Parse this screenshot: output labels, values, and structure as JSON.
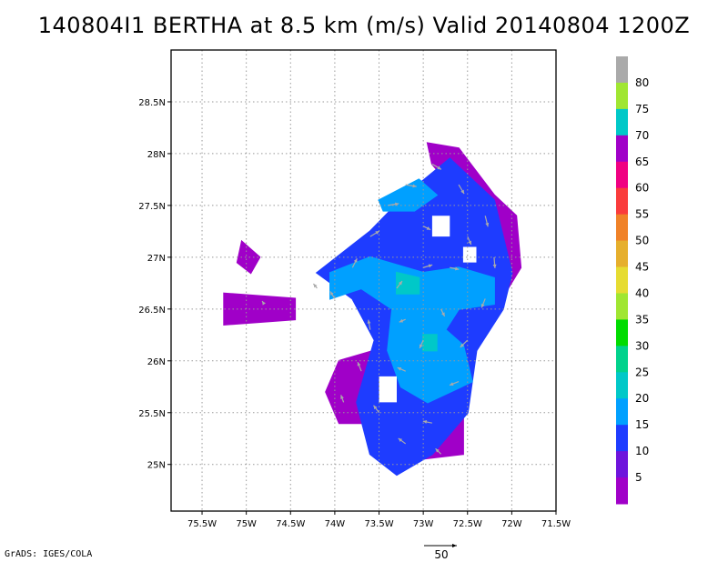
{
  "title": "140804I1 BERTHA at 8.5 km (m/s) Valid 20140804 1200Z",
  "credit": "GrADS: IGES/COLA",
  "chart_data": {
    "type": "heatmap",
    "title": "140804I1 BERTHA at 8.5 km (m/s) Valid 20140804 1200Z",
    "xlabel": "",
    "ylabel": "",
    "xlim": [
      -75.85,
      -71.5
    ],
    "ylim": [
      24.55,
      29.0
    ],
    "x_ticks": [
      {
        "value": -75.5,
        "label": "75.5W"
      },
      {
        "value": -75.0,
        "label": "75W"
      },
      {
        "value": -74.5,
        "label": "74.5W"
      },
      {
        "value": -74.0,
        "label": "74W"
      },
      {
        "value": -73.5,
        "label": "73.5W"
      },
      {
        "value": -73.0,
        "label": "73W"
      },
      {
        "value": -72.5,
        "label": "72.5W"
      },
      {
        "value": -72.0,
        "label": "72W"
      },
      {
        "value": -71.5,
        "label": "71.5W"
      }
    ],
    "y_ticks": [
      {
        "value": 25.0,
        "label": "25N"
      },
      {
        "value": 25.5,
        "label": "25.5N"
      },
      {
        "value": 26.0,
        "label": "26N"
      },
      {
        "value": 26.5,
        "label": "26.5N"
      },
      {
        "value": 27.0,
        "label": "27N"
      },
      {
        "value": 27.5,
        "label": "27.5N"
      },
      {
        "value": 28.0,
        "label": "28N"
      },
      {
        "value": 28.5,
        "label": "28.5N"
      }
    ],
    "grid": true,
    "colorbar": {
      "placement": "right",
      "levels": [
        {
          "label": "",
          "color": "#a000c8"
        },
        {
          "label": "5",
          "color": "#6e14dc"
        },
        {
          "label": "10",
          "color": "#1e3cff"
        },
        {
          "label": "15",
          "color": "#00a0ff"
        },
        {
          "label": "20",
          "color": "#00c8c8"
        },
        {
          "label": "25",
          "color": "#00d28c"
        },
        {
          "label": "30",
          "color": "#00dc00"
        },
        {
          "label": "35",
          "color": "#a0e632"
        },
        {
          "label": "40",
          "color": "#e6dc32"
        },
        {
          "label": "45",
          "color": "#e6af2d"
        },
        {
          "label": "50",
          "color": "#f08228"
        },
        {
          "label": "55",
          "color": "#fa3c3c"
        },
        {
          "label": "60",
          "color": "#f00082"
        },
        {
          "label": "65",
          "color": "#a000c8"
        },
        {
          "label": "70",
          "color": "#00c8c8"
        },
        {
          "label": "75",
          "color": "#a0e632"
        },
        {
          "label": "80",
          "color": "#aaaaaa"
        }
      ]
    },
    "wind_speed_regions": [
      {
        "name": "purple",
        "color": "#a000c8",
        "points": [
          [
            -75.05,
            27.15
          ],
          [
            -74.85,
            27.0
          ],
          [
            -74.95,
            26.85
          ],
          [
            -75.1,
            26.95
          ]
        ]
      },
      {
        "name": "purple",
        "color": "#a000c8",
        "points": [
          [
            -75.25,
            26.65
          ],
          [
            -74.45,
            26.6
          ],
          [
            -74.45,
            26.4
          ],
          [
            -75.25,
            26.35
          ]
        ]
      },
      {
        "name": "purple",
        "color": "#a000c8",
        "points": [
          [
            -72.95,
            28.1
          ],
          [
            -72.6,
            28.05
          ],
          [
            -72.2,
            27.6
          ],
          [
            -71.95,
            27.4
          ],
          [
            -71.9,
            26.9
          ],
          [
            -72.15,
            26.55
          ],
          [
            -72.4,
            26.9
          ],
          [
            -72.5,
            27.5
          ],
          [
            -72.9,
            27.9
          ]
        ]
      },
      {
        "name": "purple",
        "color": "#a000c8",
        "points": [
          [
            -73.95,
            26.0
          ],
          [
            -73.55,
            26.1
          ],
          [
            -73.45,
            25.4
          ],
          [
            -73.95,
            25.4
          ],
          [
            -74.1,
            25.7
          ]
        ]
      },
      {
        "name": "purple",
        "color": "#a000c8",
        "points": [
          [
            -72.95,
            25.55
          ],
          [
            -72.55,
            25.6
          ],
          [
            -72.55,
            25.1
          ],
          [
            -73.05,
            25.05
          ]
        ]
      },
      {
        "name": "blue",
        "color": "#1e3cff",
        "points": [
          [
            -74.2,
            26.85
          ],
          [
            -73.6,
            27.25
          ],
          [
            -73.2,
            27.6
          ],
          [
            -72.7,
            27.95
          ],
          [
            -72.2,
            27.55
          ],
          [
            -72.0,
            26.85
          ],
          [
            -72.1,
            26.5
          ],
          [
            -72.4,
            26.1
          ],
          [
            -72.5,
            25.5
          ],
          [
            -72.9,
            25.1
          ],
          [
            -73.3,
            24.9
          ],
          [
            -73.6,
            25.1
          ],
          [
            -73.75,
            25.6
          ],
          [
            -73.55,
            26.2
          ],
          [
            -73.8,
            26.6
          ]
        ]
      },
      {
        "name": "light-blue",
        "color": "#00a0ff",
        "points": [
          [
            -74.05,
            26.85
          ],
          [
            -73.6,
            27.0
          ],
          [
            -73.0,
            26.85
          ],
          [
            -72.6,
            26.9
          ],
          [
            -72.2,
            26.8
          ],
          [
            -72.2,
            26.55
          ],
          [
            -72.6,
            26.5
          ],
          [
            -72.75,
            26.3
          ],
          [
            -72.55,
            26.15
          ],
          [
            -72.45,
            25.8
          ],
          [
            -72.95,
            25.6
          ],
          [
            -73.25,
            25.75
          ],
          [
            -73.4,
            26.1
          ],
          [
            -73.35,
            26.5
          ],
          [
            -73.7,
            26.7
          ],
          [
            -74.05,
            26.6
          ]
        ]
      },
      {
        "name": "light-blue",
        "color": "#00a0ff",
        "points": [
          [
            -73.5,
            27.55
          ],
          [
            -73.05,
            27.75
          ],
          [
            -72.85,
            27.6
          ],
          [
            -73.1,
            27.45
          ],
          [
            -73.45,
            27.45
          ]
        ]
      },
      {
        "name": "teal",
        "color": "#00c8c8",
        "points": [
          [
            -73.3,
            26.85
          ],
          [
            -73.05,
            26.8
          ],
          [
            -73.05,
            26.65
          ],
          [
            -73.3,
            26.65
          ]
        ]
      },
      {
        "name": "teal",
        "color": "#00c8c8",
        "points": [
          [
            -73.0,
            26.25
          ],
          [
            -72.85,
            26.25
          ],
          [
            -72.85,
            26.1
          ],
          [
            -73.0,
            26.1
          ]
        ]
      }
    ],
    "blank_holes": [
      {
        "points": [
          [
            -72.9,
            27.4
          ],
          [
            -72.7,
            27.4
          ],
          [
            -72.7,
            27.2
          ],
          [
            -72.9,
            27.2
          ]
        ]
      },
      {
        "points": [
          [
            -72.55,
            27.1
          ],
          [
            -72.4,
            27.1
          ],
          [
            -72.4,
            26.95
          ],
          [
            -72.55,
            26.95
          ]
        ]
      },
      {
        "points": [
          [
            -73.5,
            25.85
          ],
          [
            -73.3,
            25.85
          ],
          [
            -73.3,
            25.6
          ],
          [
            -73.5,
            25.6
          ]
        ]
      }
    ],
    "wind_vectors": {
      "color": "#aaaaaa",
      "reference": {
        "label": "50",
        "magnitude": 50
      },
      "samples": [
        {
          "lon": -74.8,
          "lat": 26.55,
          "u": -2,
          "v": 3
        },
        {
          "lon": -74.2,
          "lat": 26.7,
          "u": -4,
          "v": 5
        },
        {
          "lon": -74.0,
          "lat": 26.6,
          "u": -5,
          "v": 8
        },
        {
          "lon": -73.8,
          "lat": 26.9,
          "u": 5,
          "v": 10
        },
        {
          "lon": -73.6,
          "lat": 27.2,
          "u": 10,
          "v": 6
        },
        {
          "lon": -73.4,
          "lat": 27.5,
          "u": 12,
          "v": 2
        },
        {
          "lon": -73.2,
          "lat": 27.7,
          "u": 12,
          "v": -2
        },
        {
          "lon": -72.9,
          "lat": 27.9,
          "u": 10,
          "v": -6
        },
        {
          "lon": -72.6,
          "lat": 27.7,
          "u": 6,
          "v": -10
        },
        {
          "lon": -72.3,
          "lat": 27.4,
          "u": 3,
          "v": -12
        },
        {
          "lon": -72.2,
          "lat": 27.0,
          "u": 1,
          "v": -12
        },
        {
          "lon": -72.3,
          "lat": 26.6,
          "u": -4,
          "v": -10
        },
        {
          "lon": -72.5,
          "lat": 26.2,
          "u": -8,
          "v": -8
        },
        {
          "lon": -72.6,
          "lat": 25.8,
          "u": -10,
          "v": -4
        },
        {
          "lon": -72.9,
          "lat": 25.4,
          "u": -10,
          "v": 2
        },
        {
          "lon": -73.2,
          "lat": 25.2,
          "u": -8,
          "v": 6
        },
        {
          "lon": -73.5,
          "lat": 25.5,
          "u": -6,
          "v": 8
        },
        {
          "lon": -73.7,
          "lat": 25.9,
          "u": -4,
          "v": 10
        },
        {
          "lon": -73.6,
          "lat": 26.3,
          "u": -2,
          "v": 11
        },
        {
          "lon": -73.3,
          "lat": 26.7,
          "u": 6,
          "v": 8
        },
        {
          "lon": -73.0,
          "lat": 26.9,
          "u": 10,
          "v": 3
        },
        {
          "lon": -72.7,
          "lat": 26.9,
          "u": 10,
          "v": -2
        },
        {
          "lon": -72.8,
          "lat": 26.5,
          "u": 4,
          "v": -8
        },
        {
          "lon": -73.0,
          "lat": 26.2,
          "u": -4,
          "v": -9
        },
        {
          "lon": -73.2,
          "lat": 26.4,
          "u": -7,
          "v": -3
        },
        {
          "lon": -73.2,
          "lat": 25.9,
          "u": -9,
          "v": 4
        },
        {
          "lon": -73.9,
          "lat": 25.6,
          "u": -3,
          "v": 8
        },
        {
          "lon": -72.8,
          "lat": 25.1,
          "u": -6,
          "v": 6
        },
        {
          "lon": -73.0,
          "lat": 27.3,
          "u": 8,
          "v": -4
        },
        {
          "lon": -72.5,
          "lat": 27.2,
          "u": 4,
          "v": -9
        }
      ]
    }
  }
}
